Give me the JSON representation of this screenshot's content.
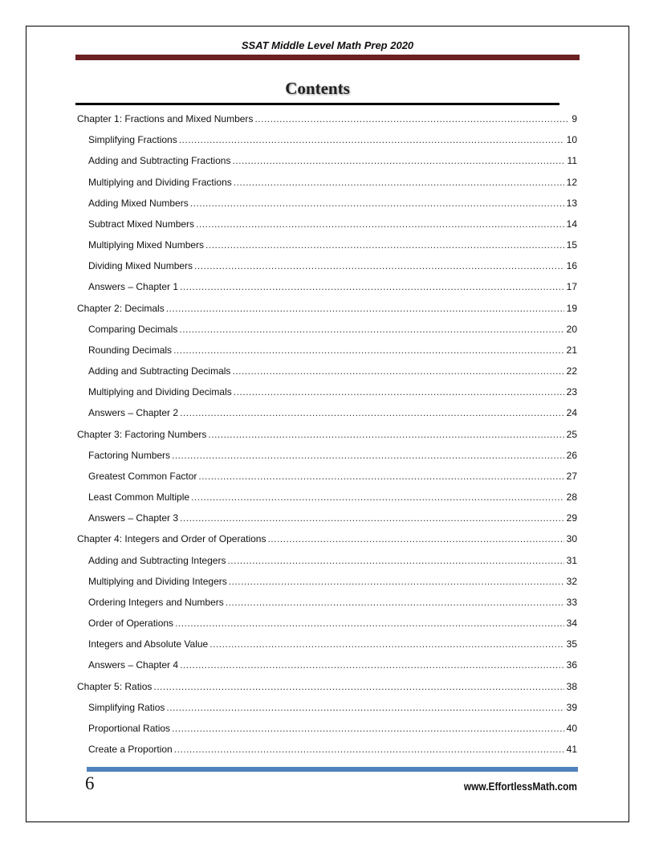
{
  "header": {
    "title": "SSAT Middle Level Math Prep 2020",
    "bar_color": "#6b2124"
  },
  "contents_title": "Contents",
  "toc": [
    {
      "level": "chapter",
      "label": "Chapter 1:  Fractions and Mixed Numbers",
      "page": "9"
    },
    {
      "level": "sub",
      "label": "Simplifying Fractions",
      "page": "10"
    },
    {
      "level": "sub",
      "label": "Adding and Subtracting Fractions",
      "page": "11"
    },
    {
      "level": "sub",
      "label": "Multiplying and Dividing Fractions",
      "page": "12"
    },
    {
      "level": "sub",
      "label": "Adding Mixed Numbers",
      "page": "13"
    },
    {
      "level": "sub",
      "label": "Subtract Mixed Numbers",
      "page": "14"
    },
    {
      "level": "sub",
      "label": "Multiplying Mixed Numbers",
      "page": "15"
    },
    {
      "level": "sub",
      "label": "Dividing Mixed Numbers",
      "page": "16"
    },
    {
      "level": "sub",
      "label": "Answers – Chapter 1",
      "page": "17"
    },
    {
      "level": "chapter",
      "label": "Chapter 2:  Decimals",
      "page": "19"
    },
    {
      "level": "sub",
      "label": "Comparing Decimals",
      "page": "20"
    },
    {
      "level": "sub",
      "label": "Rounding Decimals",
      "page": "21"
    },
    {
      "level": "sub",
      "label": "Adding and Subtracting Decimals",
      "page": "22"
    },
    {
      "level": "sub",
      "label": "Multiplying and Dividing Decimals",
      "page": "23"
    },
    {
      "level": "sub",
      "label": "Answers – Chapter 2",
      "page": "24"
    },
    {
      "level": "chapter",
      "label": "Chapter 3:  Factoring Numbers",
      "page": "25"
    },
    {
      "level": "sub",
      "label": "Factoring Numbers",
      "page": "26"
    },
    {
      "level": "sub",
      "label": "Greatest Common Factor",
      "page": "27"
    },
    {
      "level": "sub",
      "label": "Least Common Multiple",
      "page": "28"
    },
    {
      "level": "sub",
      "label": "Answers – Chapter 3",
      "page": "29"
    },
    {
      "level": "chapter",
      "label": "Chapter 4:  Integers and Order of Operations",
      "page": "30"
    },
    {
      "level": "sub",
      "label": "Adding and Subtracting Integers",
      "page": "31"
    },
    {
      "level": "sub",
      "label": "Multiplying and Dividing Integers",
      "page": "32"
    },
    {
      "level": "sub",
      "label": "Ordering Integers and Numbers",
      "page": "33"
    },
    {
      "level": "sub",
      "label": "Order of Operations",
      "page": "34"
    },
    {
      "level": "sub",
      "label": "Integers and Absolute Value",
      "page": "35"
    },
    {
      "level": "sub",
      "label": "Answers – Chapter 4",
      "page": "36"
    },
    {
      "level": "chapter",
      "label": "Chapter 5:  Ratios",
      "page": "38"
    },
    {
      "level": "sub",
      "label": "Simplifying Ratios",
      "page": "39"
    },
    {
      "level": "sub",
      "label": "Proportional Ratios",
      "page": "40"
    },
    {
      "level": "sub",
      "label": "Create a Proportion",
      "page": "41"
    }
  ],
  "footer": {
    "page_number": "6",
    "website": "www.EffortlessMath.com",
    "bar_color": "#4f81bd"
  }
}
